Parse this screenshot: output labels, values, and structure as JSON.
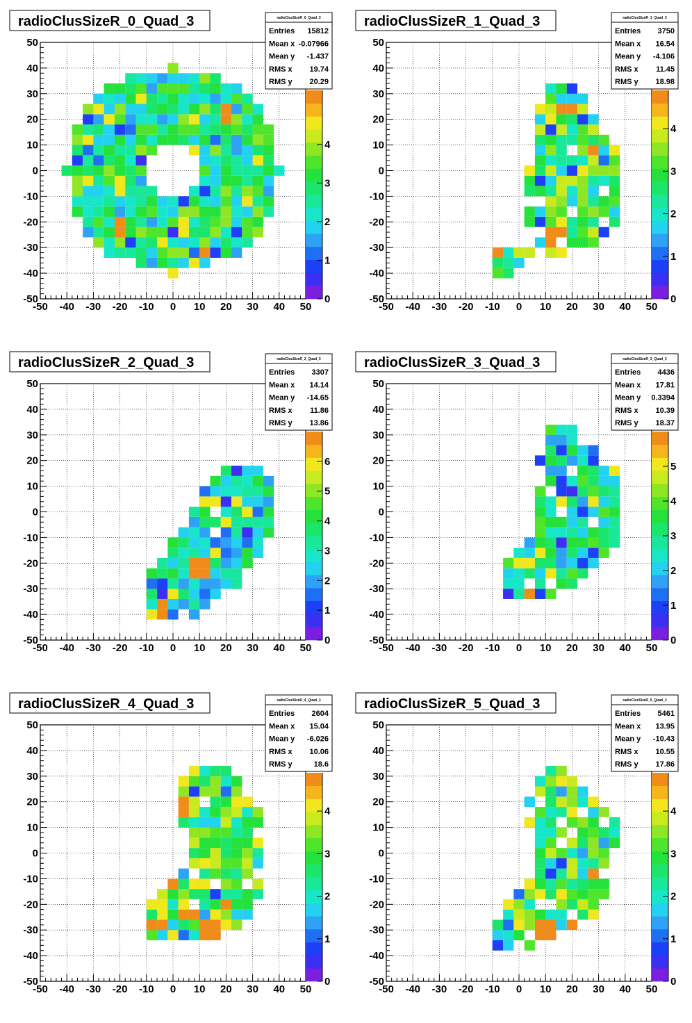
{
  "chart_data": [
    {
      "type": "heatmap",
      "title": "radioClusSizeR_0_Quad_3",
      "stats_name": "radioClusSizeR_0_Quad_3",
      "stats": [
        [
          "Entries",
          "15812"
        ],
        [
          "Mean x",
          "-0.07966"
        ],
        [
          "Mean y",
          "-1.437"
        ],
        [
          "RMS x",
          "19.74"
        ],
        [
          "RMS y",
          "20.29"
        ]
      ],
      "xlim": [
        -50,
        50
      ],
      "ylim": [
        -50,
        50
      ],
      "x_ticks": [
        -50,
        -40,
        -30,
        -20,
        -10,
        0,
        10,
        20,
        30,
        40,
        50
      ],
      "y_ticks": [
        -50,
        -40,
        -30,
        -20,
        -10,
        0,
        10,
        20,
        30,
        40,
        50
      ],
      "zmax": 5.4,
      "z_ticks": [
        0,
        1,
        2,
        3,
        4
      ],
      "grid": true,
      "shape": {
        "kind": "ring",
        "cx": 0,
        "cy": 0,
        "r_in": 9,
        "r_out": 40
      },
      "hot_cells": [
        [
          -20,
          -22
        ],
        [
          -20,
          -35
        ],
        [
          12,
          -32
        ],
        [
          20,
          22
        ]
      ]
    },
    {
      "type": "heatmap",
      "title": "radioClusSizeR_1_Quad_3",
      "stats_name": "radioClusSizeR_1_Quad_3",
      "stats": [
        [
          "Entries",
          "3750"
        ],
        [
          "Mean x",
          "16.54"
        ],
        [
          "Mean y",
          "-4.106"
        ],
        [
          "RMS x",
          "11.45"
        ],
        [
          "RMS y",
          "18.98"
        ]
      ],
      "xlim": [
        -50,
        50
      ],
      "ylim": [
        -50,
        50
      ],
      "x_ticks": [
        -50,
        -40,
        -30,
        -20,
        -10,
        0,
        10,
        20,
        30,
        40,
        50
      ],
      "y_ticks": [
        -50,
        -40,
        -30,
        -20,
        -10,
        0,
        10,
        20,
        30,
        40,
        50
      ],
      "zmax": 4.9,
      "z_ticks": [
        0,
        1,
        2,
        3,
        4
      ],
      "grid": true,
      "shape": {
        "kind": "blob",
        "polygon": [
          [
            10,
            36
          ],
          [
            22,
            36
          ],
          [
            30,
            18
          ],
          [
            40,
            8
          ],
          [
            40,
            -5
          ],
          [
            36,
            -22
          ],
          [
            26,
            -30
          ],
          [
            14,
            -34
          ],
          [
            2,
            -28
          ],
          [
            -10,
            -32
          ],
          [
            -10,
            -40
          ],
          [
            2,
            -40
          ],
          [
            6,
            -25
          ],
          [
            0,
            -10
          ],
          [
            6,
            5
          ],
          [
            6,
            18
          ],
          [
            10,
            30
          ]
        ]
      },
      "hot_cells": [
        [
          18,
          24
        ],
        [
          28,
          8
        ],
        [
          14,
          -26
        ],
        [
          -9,
          -31
        ]
      ]
    },
    {
      "type": "heatmap",
      "title": "radioClusSizeR_2_Quad_3",
      "stats_name": "radioClusSizeR_2_Quad_3",
      "stats": [
        [
          "Entries",
          "3307"
        ],
        [
          "Mean x",
          "14.14"
        ],
        [
          "Mean y",
          "-14.65"
        ],
        [
          "RMS x",
          "11.86"
        ],
        [
          "RMS y",
          "13.86"
        ]
      ],
      "xlim": [
        -50,
        50
      ],
      "ylim": [
        -50,
        50
      ],
      "x_ticks": [
        -50,
        -40,
        -30,
        -20,
        -10,
        0,
        10,
        20,
        30,
        40,
        50
      ],
      "y_ticks": [
        -50,
        -40,
        -30,
        -20,
        -10,
        0,
        10,
        20,
        30,
        40,
        50
      ],
      "zmax": 7.0,
      "z_ticks": [
        0,
        1,
        2,
        3,
        4,
        5,
        6
      ],
      "grid": true,
      "shape": {
        "kind": "blob",
        "polygon": [
          [
            28,
            18
          ],
          [
            34,
            18
          ],
          [
            38,
            8
          ],
          [
            40,
            -8
          ],
          [
            34,
            -16
          ],
          [
            28,
            -24
          ],
          [
            24,
            -30
          ],
          [
            16,
            -34
          ],
          [
            10,
            -40
          ],
          [
            -10,
            -40
          ],
          [
            -10,
            -30
          ],
          [
            -6,
            -18
          ],
          [
            -2,
            -10
          ],
          [
            6,
            -5
          ],
          [
            10,
            8
          ],
          [
            16,
            14
          ],
          [
            22,
            18
          ]
        ]
      },
      "hot_cells": [
        [
          10,
          -22
        ],
        [
          -4,
          -38
        ]
      ]
    },
    {
      "type": "heatmap",
      "title": "radioClusSizeR_3_Quad_3",
      "stats_name": "radioClusSizeR_3_Quad_3",
      "stats": [
        [
          "Entries",
          "4436"
        ],
        [
          "Mean x",
          "17.81"
        ],
        [
          "Mean y",
          "0.3394"
        ],
        [
          "RMS x",
          "10.39"
        ],
        [
          "RMS y",
          "18.37"
        ]
      ],
      "xlim": [
        -50,
        50
      ],
      "ylim": [
        -50,
        50
      ],
      "x_ticks": [
        -50,
        -40,
        -30,
        -20,
        -10,
        0,
        10,
        20,
        30,
        40,
        50
      ],
      "y_ticks": [
        -50,
        -40,
        -30,
        -20,
        -10,
        0,
        10,
        20,
        30,
        40,
        50
      ],
      "zmax": 6.0,
      "z_ticks": [
        0,
        1,
        2,
        3,
        4,
        5
      ],
      "grid": true,
      "shape": {
        "kind": "blob",
        "polygon": [
          [
            12,
            36
          ],
          [
            20,
            36
          ],
          [
            30,
            26
          ],
          [
            36,
            18
          ],
          [
            40,
            8
          ],
          [
            40,
            -10
          ],
          [
            34,
            -18
          ],
          [
            26,
            -26
          ],
          [
            16,
            -32
          ],
          [
            6,
            -34
          ],
          [
            -4,
            -34
          ],
          [
            -4,
            -18
          ],
          [
            4,
            -10
          ],
          [
            8,
            -5
          ],
          [
            6,
            5
          ],
          [
            8,
            20
          ],
          [
            10,
            32
          ]
        ]
      },
      "hot_cells": [
        [
          4,
          -31
        ]
      ]
    },
    {
      "type": "heatmap",
      "title": "radioClusSizeR_4_Quad_3",
      "stats_name": "radioClusSizeR_4_Quad_3",
      "stats": [
        [
          "Entries",
          "2604"
        ],
        [
          "Mean x",
          "15.04"
        ],
        [
          "Mean y",
          "-6.026"
        ],
        [
          "RMS x",
          "10.06"
        ],
        [
          "RMS y",
          "18.6"
        ]
      ],
      "xlim": [
        -50,
        50
      ],
      "ylim": [
        -50,
        50
      ],
      "x_ticks": [
        -50,
        -40,
        -30,
        -20,
        -10,
        0,
        10,
        20,
        30,
        40,
        50
      ],
      "y_ticks": [
        -50,
        -40,
        -30,
        -20,
        -10,
        0,
        10,
        20,
        30,
        40,
        50
      ],
      "zmax": 4.9,
      "z_ticks": [
        0,
        1,
        2,
        3,
        4
      ],
      "grid": true,
      "shape": {
        "kind": "blob",
        "polygon": [
          [
            8,
            36
          ],
          [
            14,
            36
          ],
          [
            22,
            32
          ],
          [
            26,
            26
          ],
          [
            30,
            18
          ],
          [
            36,
            14
          ],
          [
            36,
            0
          ],
          [
            32,
            -8
          ],
          [
            34,
            -16
          ],
          [
            30,
            -24
          ],
          [
            24,
            -30
          ],
          [
            12,
            -34
          ],
          [
            2,
            -36
          ],
          [
            -8,
            -34
          ],
          [
            -8,
            -18
          ],
          [
            2,
            -10
          ],
          [
            6,
            -2
          ],
          [
            4,
            10
          ],
          [
            2,
            22
          ],
          [
            4,
            30
          ]
        ]
      },
      "hot_cells": [
        [
          4,
          18
        ],
        [
          4,
          4
        ],
        [
          -2,
          -12
        ],
        [
          -6,
          -28
        ],
        [
          6,
          -24
        ],
        [
          20,
          -20
        ],
        [
          14,
          -30
        ]
      ]
    },
    {
      "type": "heatmap",
      "title": "radioClusSizeR_5_Quad_3",
      "stats_name": "radioClusSizeR_5_Quad_3",
      "stats": [
        [
          "Entries",
          "5461"
        ],
        [
          "Mean x",
          "13.95"
        ],
        [
          "Mean y",
          "-10.43"
        ],
        [
          "RMS x",
          "10.55"
        ],
        [
          "RMS y",
          "17.86"
        ]
      ],
      "xlim": [
        -50,
        50
      ],
      "ylim": [
        -50,
        50
      ],
      "x_ticks": [
        -50,
        -40,
        -30,
        -20,
        -10,
        0,
        10,
        20,
        30,
        40,
        50
      ],
      "y_ticks": [
        -50,
        -40,
        -30,
        -20,
        -10,
        0,
        10,
        20,
        30,
        40,
        50
      ],
      "zmax": 4.9,
      "z_ticks": [
        0,
        1,
        2,
        3,
        4
      ],
      "grid": true,
      "shape": {
        "kind": "blob",
        "polygon": [
          [
            10,
            34
          ],
          [
            18,
            34
          ],
          [
            26,
            26
          ],
          [
            34,
            18
          ],
          [
            38,
            10
          ],
          [
            36,
            2
          ],
          [
            32,
            -8
          ],
          [
            34,
            -16
          ],
          [
            28,
            -26
          ],
          [
            16,
            -32
          ],
          [
            6,
            -36
          ],
          [
            -2,
            -40
          ],
          [
            -10,
            -38
          ],
          [
            -10,
            -30
          ],
          [
            -4,
            -20
          ],
          [
            4,
            -10
          ],
          [
            8,
            0
          ],
          [
            4,
            10
          ],
          [
            4,
            22
          ],
          [
            8,
            30
          ]
        ]
      },
      "hot_cells": [
        [
          20,
          -30
        ],
        [
          10,
          -30
        ],
        [
          28,
          -8
        ]
      ]
    }
  ]
}
